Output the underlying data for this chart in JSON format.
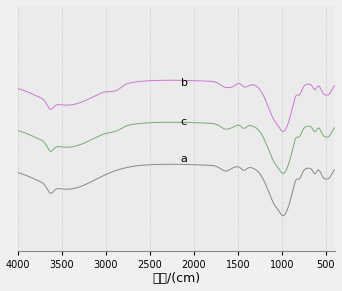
{
  "xmin": 400,
  "xmax": 4000,
  "xlabel": "波数/(cm)",
  "xticks": [
    4000,
    3500,
    3000,
    2500,
    2000,
    1500,
    1000,
    500
  ],
  "background_color": "#f0f0f0",
  "plot_bg_color": "#ebebeb",
  "line_colors": {
    "a": "#888888",
    "b": "#cc77cc",
    "c": "#77aa77"
  },
  "labels": {
    "a": "a",
    "b": "b",
    "c": "c"
  }
}
